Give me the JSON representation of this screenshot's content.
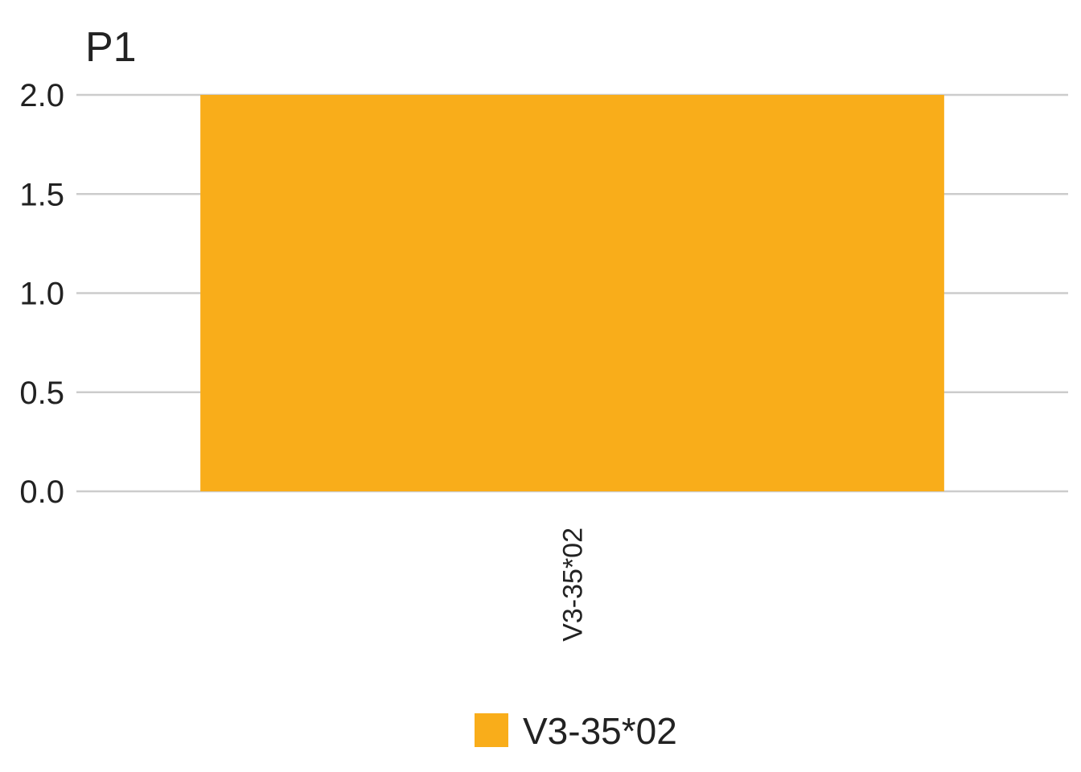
{
  "chart_data": {
    "type": "bar",
    "title": "P1",
    "xlabel": "",
    "ylabel": "",
    "categories": [
      "V3-35*02"
    ],
    "series": [
      {
        "name": "V3-35*02",
        "values": [
          2
        ],
        "color": "#F9AD1A"
      }
    ],
    "ylim": [
      0,
      2
    ],
    "y_ticks": [
      "0.0",
      "0.5",
      "1.0",
      "1.5",
      "2.0"
    ],
    "grid": "horizontal",
    "legend": {
      "placement": "bottom-center",
      "entries": [
        {
          "label": "V3-35*02",
          "color": "#F9AD1A"
        }
      ]
    },
    "x_tick_rotation": "vertical"
  }
}
